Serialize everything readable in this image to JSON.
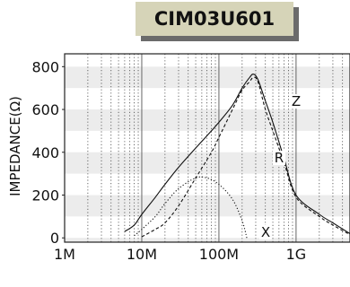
{
  "chart_data": {
    "type": "line",
    "title": "CIM03U601",
    "xlabel": "",
    "ylabel": "IMPEDANCE(Ω)",
    "xscale": "log",
    "xlim": [
      1000000,
      5000000000
    ],
    "ylim": [
      -20,
      860
    ],
    "x_ticks": [
      {
        "value": 1000000,
        "label": "1M"
      },
      {
        "value": 10000000,
        "label": "10M"
      },
      {
        "value": 100000000,
        "label": "100M"
      },
      {
        "value": 1000000000,
        "label": "1G"
      }
    ],
    "y_ticks": [
      0,
      200,
      400,
      600,
      800
    ],
    "grid": true,
    "series": [
      {
        "name": "Z",
        "line_style": "solid",
        "x": [
          6000000,
          8000000,
          10000000,
          15000000,
          20000000,
          30000000,
          50000000,
          80000000,
          100000000,
          150000000,
          200000000,
          250000000,
          280000000,
          320000000,
          400000000,
          500000000,
          700000000,
          1000000000,
          2000000000,
          3000000000,
          5000000000
        ],
        "values": [
          30,
          60,
          110,
          190,
          250,
          330,
          420,
          500,
          540,
          620,
          700,
          750,
          765,
          740,
          640,
          540,
          370,
          200,
          110,
          70,
          20
        ]
      },
      {
        "name": "R",
        "line_style": "dashed",
        "x": [
          10000000,
          15000000,
          20000000,
          30000000,
          50000000,
          80000000,
          100000000,
          150000000,
          200000000,
          250000000,
          280000000,
          320000000,
          400000000,
          500000000,
          700000000,
          1000000000,
          2000000000,
          3000000000,
          5000000000
        ],
        "values": [
          5,
          40,
          70,
          150,
          280,
          400,
          470,
          600,
          690,
          730,
          750,
          730,
          600,
          500,
          350,
          190,
          100,
          60,
          15
        ]
      },
      {
        "name": "X",
        "line_style": "dotted",
        "x": [
          8000000,
          10000000,
          15000000,
          20000000,
          30000000,
          50000000,
          70000000,
          100000000,
          150000000,
          200000000,
          230000000
        ],
        "values": [
          10,
          40,
          100,
          160,
          230,
          280,
          280,
          250,
          180,
          80,
          0
        ]
      }
    ]
  }
}
